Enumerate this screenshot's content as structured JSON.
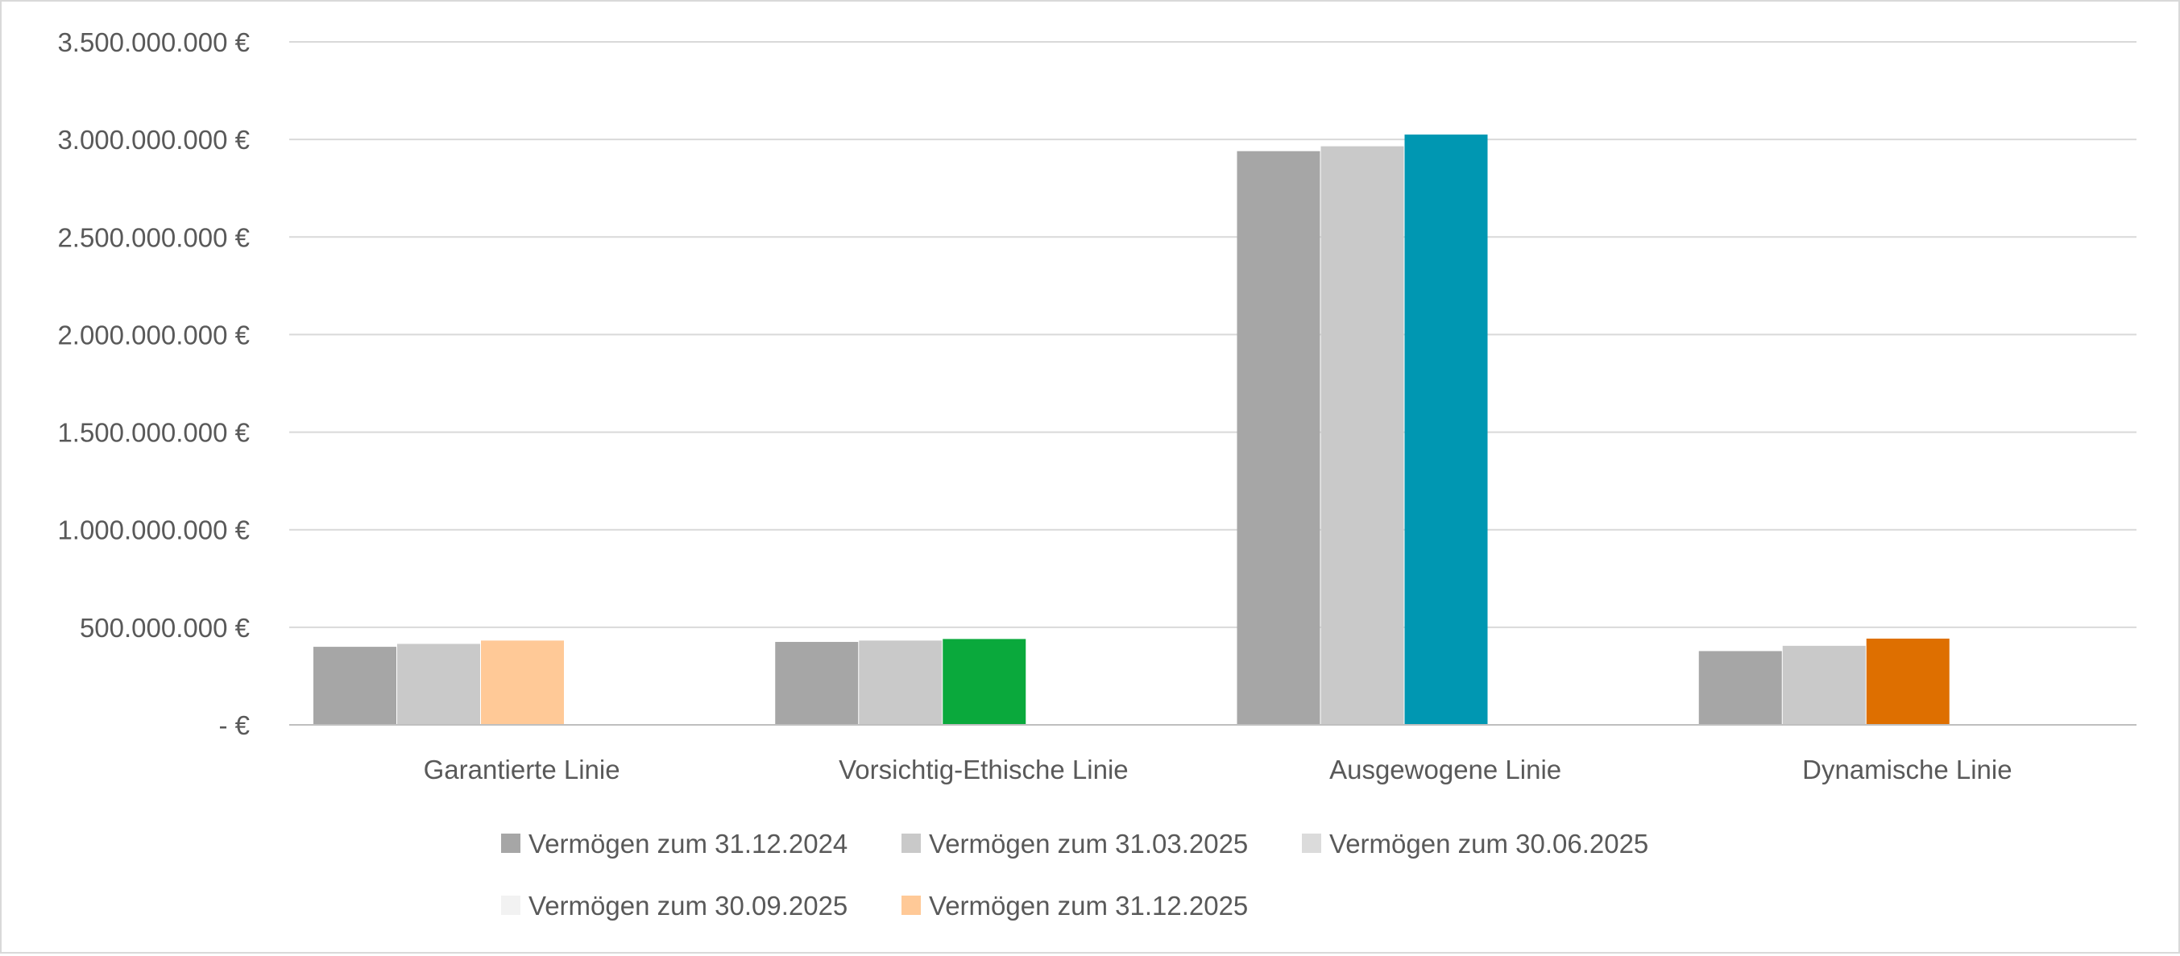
{
  "chart_data": {
    "type": "bar",
    "title": "",
    "xlabel": "",
    "ylabel": "",
    "ylim": [
      0,
      3500000000
    ],
    "ytick_values": [
      0,
      500000000,
      1000000000,
      1500000000,
      2000000000,
      2500000000,
      3000000000,
      3500000000
    ],
    "ytick_labels": [
      "-  €",
      "500.000.000 €",
      "1.000.000.000 €",
      "1.500.000.000 €",
      "2.000.000.000 €",
      "2.500.000.000 €",
      "3.000.000.000 €",
      "3.500.000.000 €"
    ],
    "grid": true,
    "legend_position": "bottom",
    "categories": [
      "Garantierte Linie",
      "Vorsichtig-Ethische Linie",
      "Ausgewogene Linie",
      "Dynamische Linie"
    ],
    "series": [
      {
        "name": "Vermögen zum 31.12.2024",
        "color": "#a6a6a6",
        "values": [
          400000000,
          425000000,
          2940000000,
          378000000
        ]
      },
      {
        "name": "Vermögen zum 31.03.2025",
        "color": "#c9c9c9",
        "values": [
          415000000,
          432000000,
          2965000000,
          405000000
        ]
      },
      {
        "name": "Vermögen zum 30.06.2025",
        "color": "#dbdbdb",
        "values": [
          432000000,
          440000000,
          3025000000,
          442000000
        ]
      },
      {
        "name": "Vermögen zum 30.09.2025",
        "color": "#f2f2f2",
        "values": [
          null,
          null,
          null,
          null
        ]
      },
      {
        "name": "Vermögen zum 31.12.2025",
        "color": "#ffc997",
        "values": [
          null,
          null,
          null,
          null
        ]
      }
    ],
    "highlight_colors": [
      "#ffc997",
      "#0aa93c",
      "#0097b2",
      "#de6f00"
    ]
  }
}
